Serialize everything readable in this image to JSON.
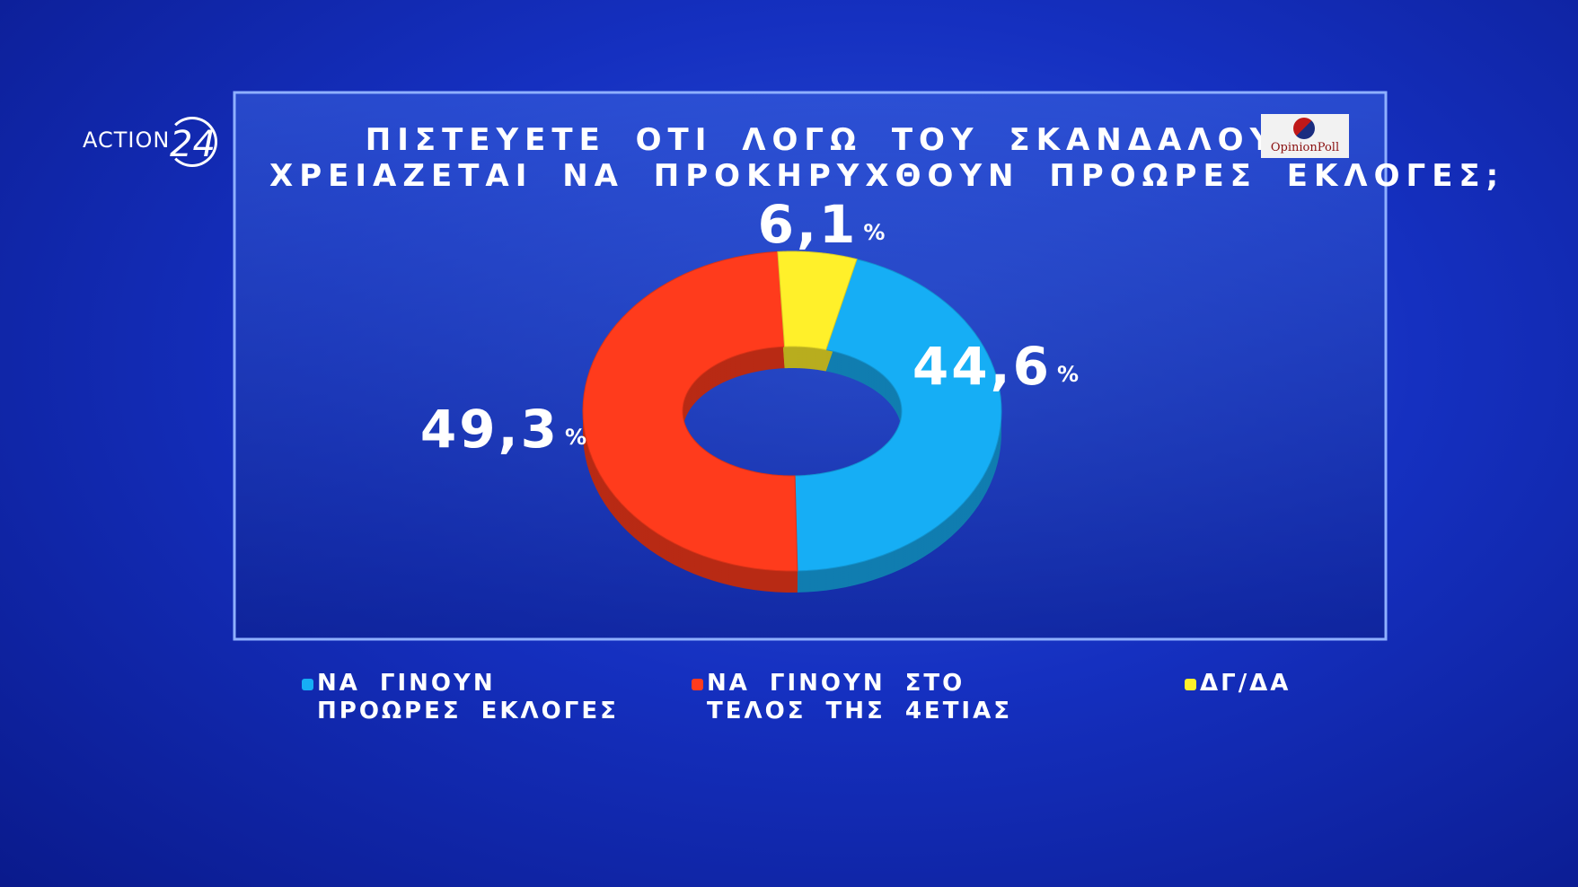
{
  "logos": {
    "channel": "ACTION",
    "channel_number": "24",
    "pollster": "OpinionPoll"
  },
  "chart_data": {
    "type": "pie",
    "donut": true,
    "title": [
      "ΠΙΣΤΕΥΕΤΕ ΟΤΙ ΛΟΓΩ ΤΟΥ ΣΚΑΝΔΑΛΟΥ",
      "ΧΡΕΙΑΖΕΤΑΙ ΝΑ ΠΡΟΚΗΡΥΧΘΟΥΝ ΠΡΟΩΡΕΣ ΕΚΛΟΓΕΣ;"
    ],
    "categories": [
      "ΝΑ ΓΙΝΟΥΝ ΠΡΟΩΡΕΣ ΕΚΛΟΓΕΣ",
      "ΝΑ ΓΙΝΟΥΝ ΣΤΟ ΤΕΛΟΣ ΤΗΣ 4ΕΤΙΑΣ",
      "ΔΓ/ΔΑ"
    ],
    "values": [
      44.6,
      49.3,
      6.1
    ],
    "value_labels": [
      "44,6%",
      "49,3%",
      "6,1%"
    ],
    "colors": [
      "#16aef5",
      "#ff3b1c",
      "#fff02a"
    ]
  }
}
